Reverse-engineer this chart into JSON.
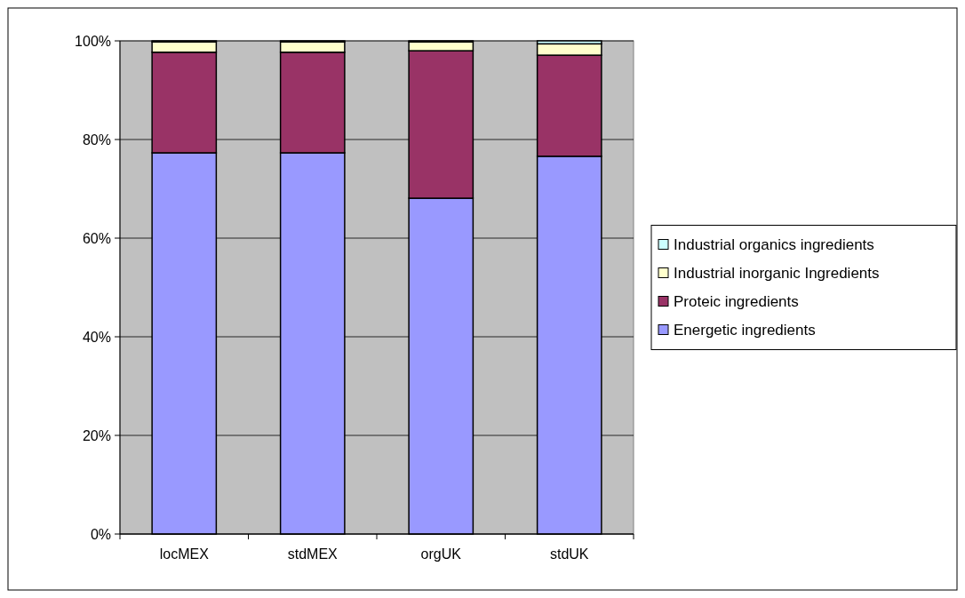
{
  "chart_data": {
    "type": "bar",
    "stacked": true,
    "categories": [
      "locMEX",
      "stdMEX",
      "orgUK",
      "stdUK"
    ],
    "series": [
      {
        "name": "Energetic ingredients",
        "color": "#9999ff",
        "values": [
          77.3,
          77.3,
          68.1,
          76.6
        ]
      },
      {
        "name": "Proteic ingredients",
        "color": "#993366",
        "values": [
          20.4,
          20.4,
          29.9,
          20.5
        ]
      },
      {
        "name": "Industrial inorganic Ingredients",
        "color": "#ffffcc",
        "values": [
          2.1,
          2.1,
          1.8,
          2.3
        ]
      },
      {
        "name": "Industrial organics ingredients",
        "color": "#ccffff",
        "values": [
          0.2,
          0.2,
          0.2,
          0.6
        ]
      }
    ],
    "ylim": [
      0,
      100
    ],
    "yticks": [
      {
        "value": 0,
        "label": "0%"
      },
      {
        "value": 20,
        "label": "20%"
      },
      {
        "value": 40,
        "label": "40%"
      },
      {
        "value": 60,
        "label": "60%"
      },
      {
        "value": 80,
        "label": "80%"
      },
      {
        "value": 100,
        "label": "100%"
      }
    ],
    "grid": "y",
    "legend": "right"
  }
}
